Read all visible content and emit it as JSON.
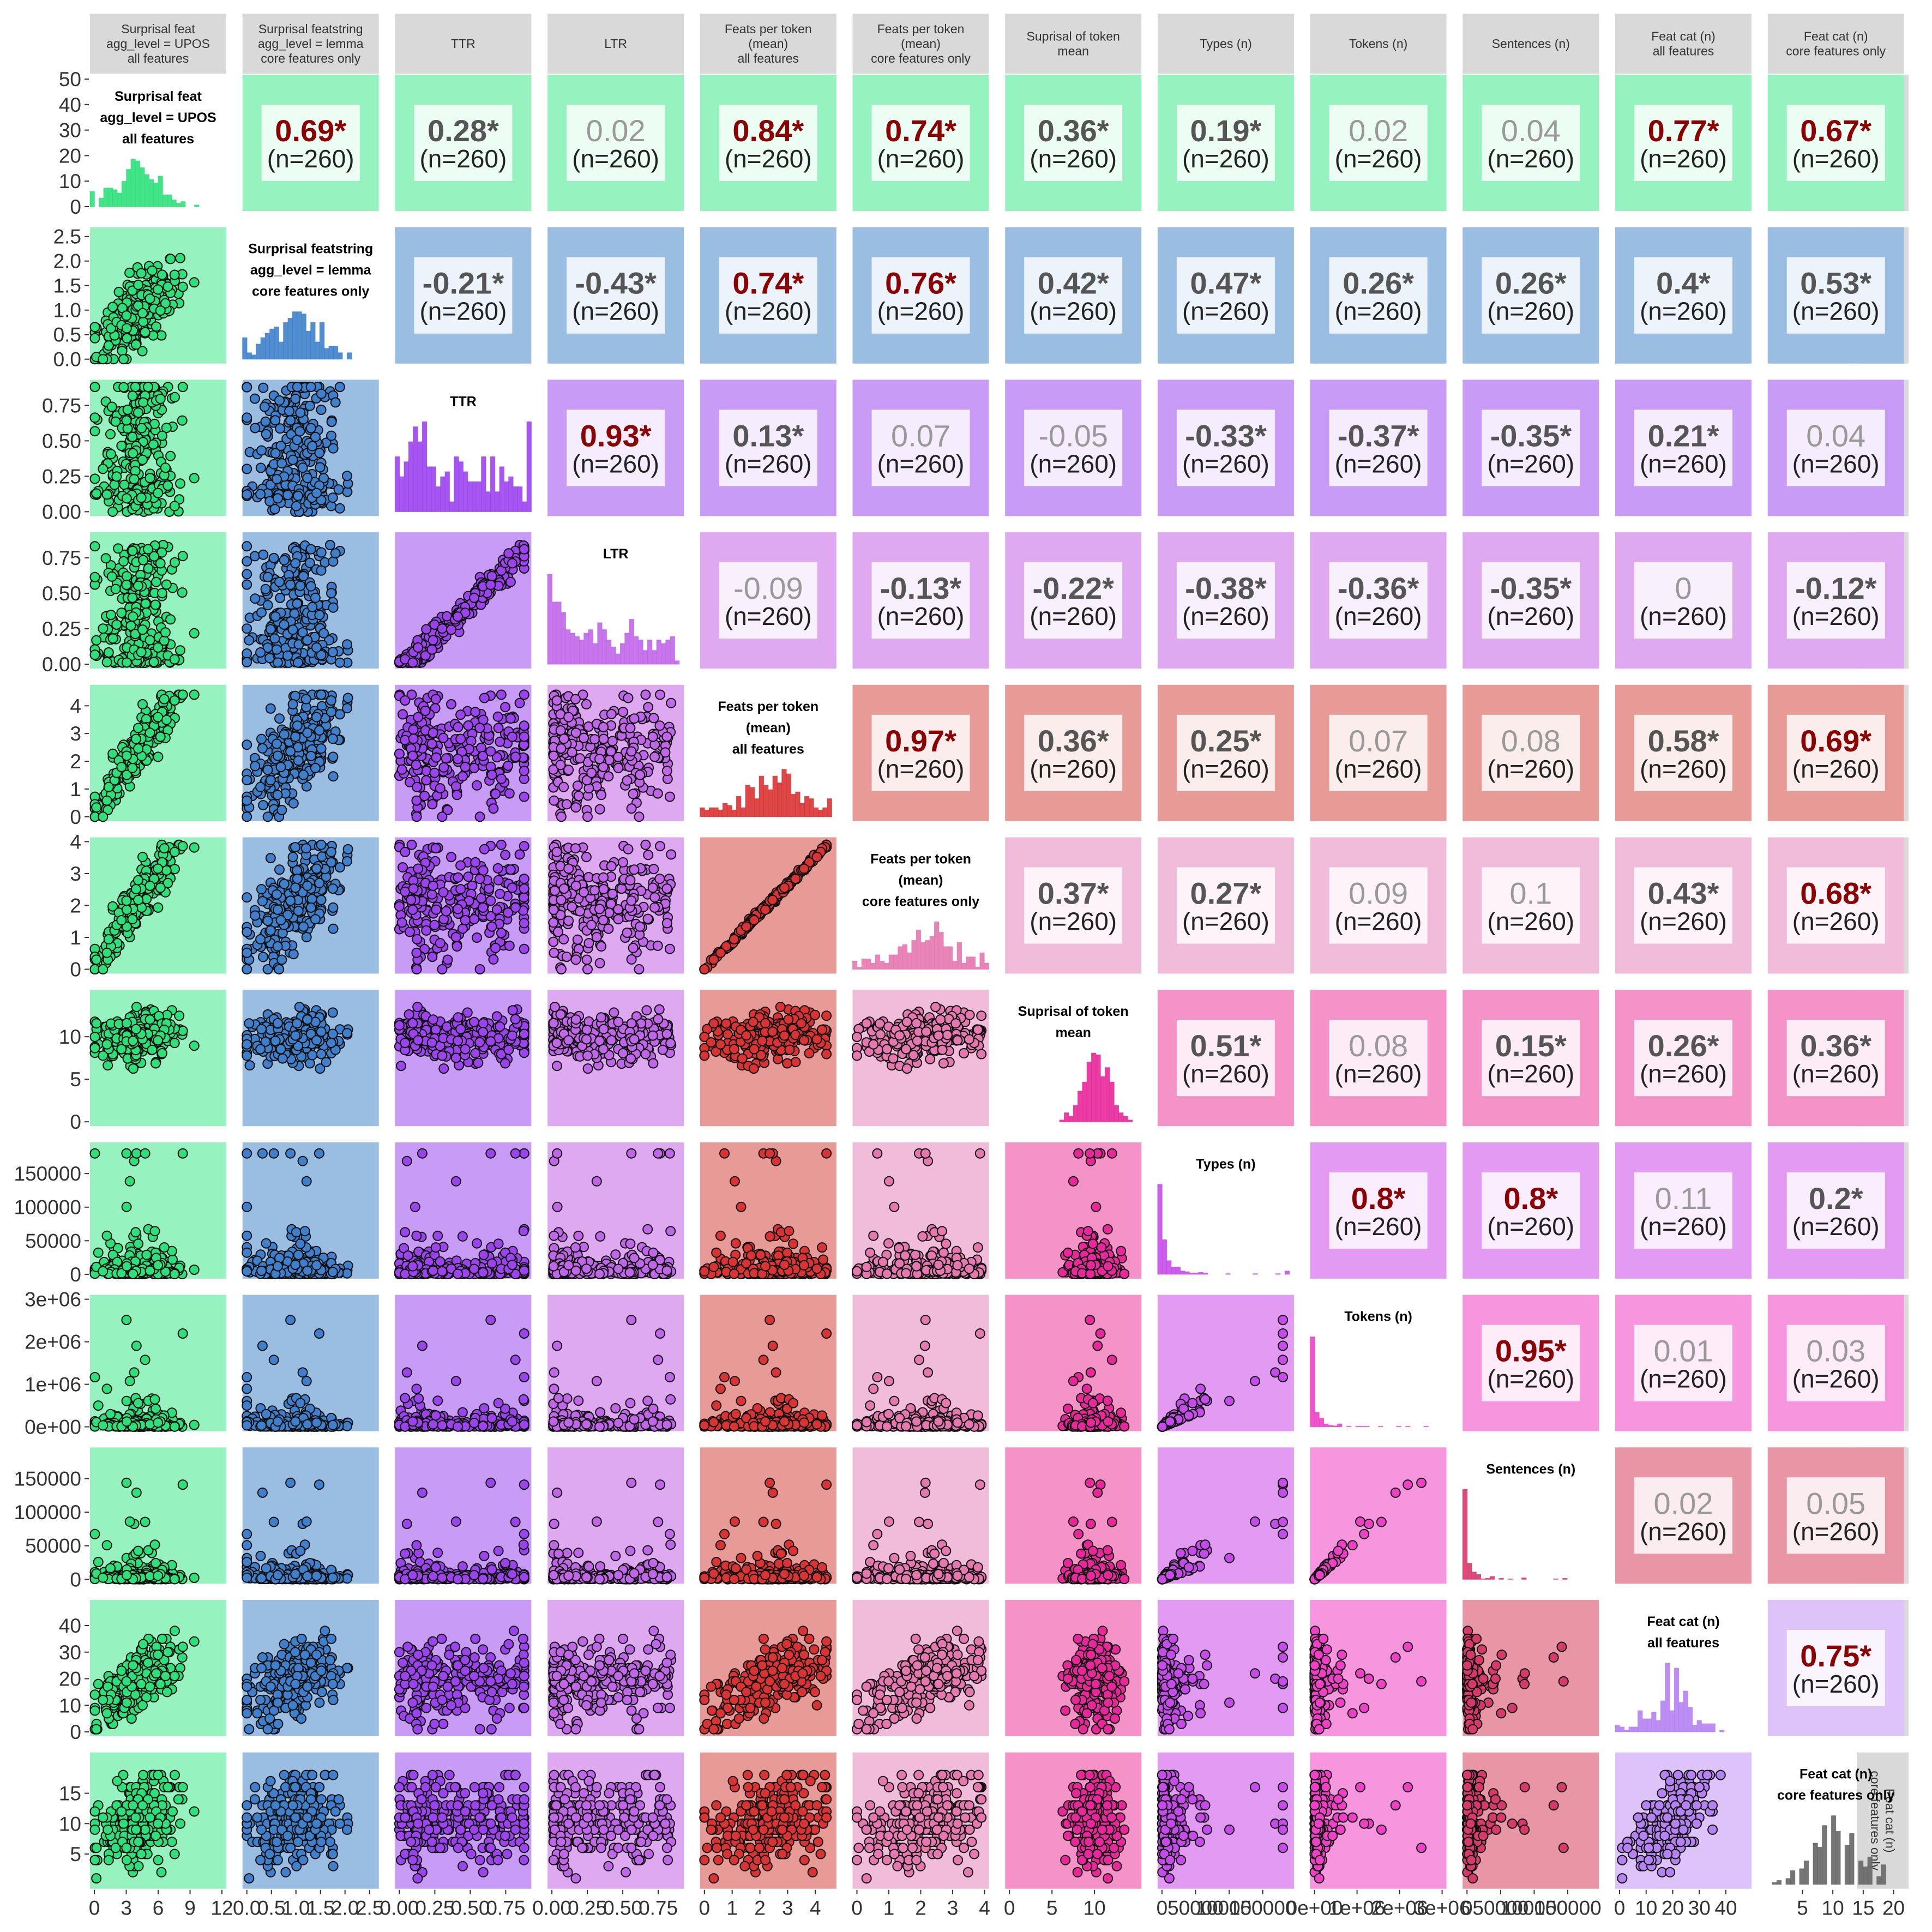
{
  "chart_data": {
    "type": "scatter-matrix",
    "n_label": "(n=260)",
    "variables": [
      {
        "key": "surp_feat",
        "label": [
          "Surprisal feat",
          "agg_level = UPOS",
          "all features"
        ],
        "color": "#2FE07A",
        "panel_bg": "#96F2BF",
        "range": [
          0,
          12
        ],
        "ticks": [
          0,
          3,
          6,
          9,
          12
        ],
        "y_ticks": [
          0,
          10,
          20,
          30,
          40,
          50
        ]
      },
      {
        "key": "surp_featstring",
        "label": [
          "Surprisal featstring",
          "agg_level = lemma",
          "core features only"
        ],
        "color": "#3F7FCC",
        "panel_bg": "#9ABDE2",
        "range": [
          0,
          2.6
        ],
        "ticks": [
          0.0,
          0.5,
          1.0,
          1.5,
          2.0,
          2.5
        ],
        "y_ticks": [
          0.0,
          0.5,
          1.0,
          1.5,
          2.0,
          2.5
        ]
      },
      {
        "key": "ttr",
        "label": [
          "TTR"
        ],
        "color": "#9B44EE",
        "panel_bg": "#C89BF6",
        "range": [
          0,
          0.9
        ],
        "ticks": [
          0.0,
          0.25,
          0.5,
          0.75
        ],
        "y_ticks": [
          0.0,
          0.25,
          0.5,
          0.75
        ]
      },
      {
        "key": "ltr",
        "label": [
          "LTR"
        ],
        "color": "#C066E8",
        "panel_bg": "#DFA9F2",
        "range": [
          0,
          0.9
        ],
        "ticks": [
          0.0,
          0.25,
          0.5,
          0.75
        ],
        "y_ticks": [
          0.0,
          0.25,
          0.5,
          0.75
        ]
      },
      {
        "key": "feats_all",
        "label": [
          "Feats per token",
          "(mean)",
          "all features"
        ],
        "color": "#D93333",
        "panel_bg": "#E89A96",
        "range": [
          0,
          4.6
        ],
        "ticks": [
          0,
          1,
          2,
          3,
          4
        ],
        "y_ticks": [
          0,
          1,
          2,
          3,
          4
        ]
      },
      {
        "key": "feats_core",
        "label": [
          "Feats per token",
          "(mean)",
          "core features only"
        ],
        "color": "#E678B0",
        "panel_bg": "#F0BCDA",
        "range": [
          0,
          4.0
        ],
        "ticks": [
          0,
          1,
          2,
          3,
          4
        ],
        "y_ticks": [
          0,
          1,
          2,
          3,
          4
        ]
      },
      {
        "key": "surp_token",
        "label": [
          "Suprisal of token",
          "mean"
        ],
        "color": "#E8289A",
        "panel_bg": "#F592C8",
        "range": [
          0,
          15
        ],
        "ticks": [
          0,
          5,
          10
        ],
        "y_ticks": [
          0,
          5,
          10
        ]
      },
      {
        "key": "types",
        "label": [
          "Types (n)"
        ],
        "color": "#C54CEA",
        "panel_bg": "#E39AF2",
        "range": [
          0,
          190000
        ],
        "ticks": [
          0,
          50000,
          100000,
          150000
        ],
        "tick_labels": [
          "0",
          "50000",
          "100000",
          "150000"
        ],
        "y_ticks": [
          0,
          50000,
          100000,
          150000
        ]
      },
      {
        "key": "tokens",
        "label": [
          "Tokens (n)"
        ],
        "color": "#F040C8",
        "panel_bg": "#F795DE",
        "range": [
          0,
          3000000
        ],
        "ticks": [
          0,
          1000000,
          2000000,
          3000000
        ],
        "tick_labels": [
          "0e+00",
          "1e+06",
          "2e+06",
          "3e+06"
        ],
        "y_ticks": [
          0,
          1000000,
          2000000,
          3000000
        ]
      },
      {
        "key": "sentences",
        "label": [
          "Sentences (n)"
        ],
        "color": "#D63A6A",
        "panel_bg": "#E895A6",
        "range": [
          0,
          190000
        ],
        "ticks": [
          0,
          50000,
          100000,
          150000
        ],
        "tick_labels": [
          "0",
          "50000",
          "100000",
          "150000"
        ],
        "y_ticks": [
          0,
          50000,
          100000,
          150000
        ]
      },
      {
        "key": "featcat_all",
        "label": [
          "Feat cat (n)",
          "all features"
        ],
        "color": "#B582F2",
        "panel_bg": "#DEC3FA",
        "range": [
          0,
          48
        ],
        "ticks": [
          0,
          10,
          20,
          30,
          40
        ],
        "y_ticks": [
          0,
          10,
          20,
          30,
          40
        ]
      },
      {
        "key": "featcat_core",
        "label": [
          "Feat cat (n)",
          "core features only"
        ],
        "color": "#666666",
        "panel_bg": "#E0E0E0",
        "range": [
          0,
          21
        ],
        "ticks": [
          5,
          10,
          15,
          20
        ],
        "y_ticks": [
          5,
          10,
          15
        ]
      }
    ],
    "correlations": [
      [
        "",
        "0.69*",
        "0.28*",
        "0.02",
        "0.84*",
        "0.74*",
        "0.36*",
        "0.19*",
        "0.02",
        "0.04",
        "0.77*",
        "0.67*"
      ],
      [
        "",
        "",
        "-0.21*",
        "-0.43*",
        "0.74*",
        "0.76*",
        "0.42*",
        "0.47*",
        "0.26*",
        "0.26*",
        "0.4*",
        "0.53*"
      ],
      [
        "",
        "",
        "",
        "0.93*",
        "0.13*",
        "0.07",
        "-0.05",
        "-0.33*",
        "-0.37*",
        "-0.35*",
        "0.21*",
        "0.04"
      ],
      [
        "",
        "",
        "",
        "",
        "-0.09",
        "-0.13*",
        "-0.22*",
        "-0.38*",
        "-0.36*",
        "-0.35*",
        "0",
        "-0.12*"
      ],
      [
        "",
        "",
        "",
        "",
        "",
        "0.97*",
        "0.36*",
        "0.25*",
        "0.07",
        "0.08",
        "0.58*",
        "0.69*"
      ],
      [
        "",
        "",
        "",
        "",
        "",
        "",
        "0.37*",
        "0.27*",
        "0.09",
        "0.1",
        "0.43*",
        "0.68*"
      ],
      [
        "",
        "",
        "",
        "",
        "",
        "",
        "",
        "0.51*",
        "0.08",
        "0.15*",
        "0.26*",
        "0.36*"
      ],
      [
        "",
        "",
        "",
        "",
        "",
        "",
        "",
        "",
        "0.8*",
        "0.8*",
        "0.11",
        "0.2*"
      ],
      [
        "",
        "",
        "",
        "",
        "",
        "",
        "",
        "",
        "",
        "0.95*",
        "0.01",
        "0.03"
      ],
      [
        "",
        "",
        "",
        "",
        "",
        "",
        "",
        "",
        "",
        "",
        "0.02",
        "0.05"
      ],
      [
        "",
        "",
        "",
        "",
        "",
        "",
        "",
        "",
        "",
        "",
        "",
        "0.75*"
      ]
    ],
    "significance_colors": {
      "strong": "#8B0000",
      "significant": "#555555",
      "not_significant": "#999999"
    },
    "grid": false
  }
}
